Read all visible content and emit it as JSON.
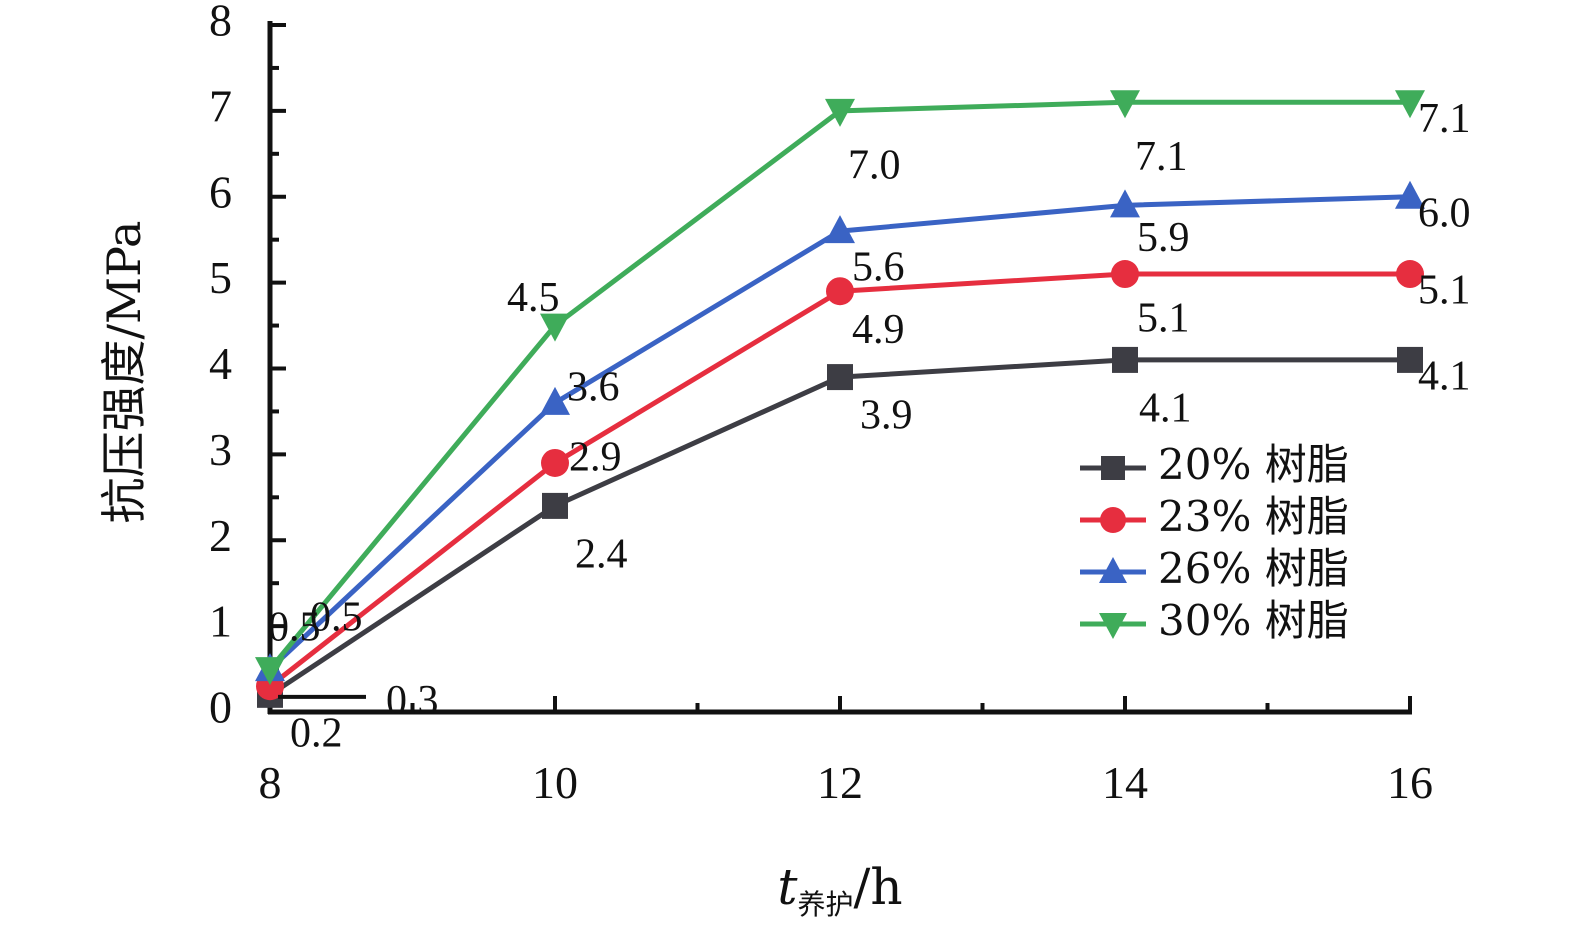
{
  "chart_data": {
    "type": "line",
    "x": [
      8,
      10,
      12,
      14,
      16
    ],
    "xlim": [
      8,
      16
    ],
    "ylim": [
      0,
      8
    ],
    "xticks": [
      "8",
      "10",
      "12",
      "14",
      "16"
    ],
    "yticks": [
      "0",
      "1",
      "2",
      "3",
      "4",
      "5",
      "6",
      "7",
      "8"
    ],
    "xlabel_main": "t",
    "xlabel_sub": "养护",
    "xlabel_unit": "/h",
    "ylabel": "抗压强度/MPa",
    "legend_position": "center-right",
    "grid": false,
    "series": [
      {
        "name": "20% 树脂",
        "values": [
          0.2,
          2.4,
          3.9,
          4.1,
          4.1
        ],
        "labels": [
          "0.2",
          "2.4",
          "3.9",
          "4.1",
          "4.1"
        ],
        "color": "#3d3d44",
        "marker": "square"
      },
      {
        "name": "23% 树脂",
        "values": [
          0.3,
          2.9,
          4.9,
          5.1,
          5.1
        ],
        "labels": [
          "0.3",
          "2.9",
          "4.9",
          "5.1",
          "5.1"
        ],
        "color": "#e62e3f",
        "marker": "circle"
      },
      {
        "name": "26% 树脂",
        "values": [
          0.5,
          3.6,
          5.6,
          5.9,
          6.0
        ],
        "labels": [
          "0.5",
          "3.6",
          "5.6",
          "5.9",
          "6.0"
        ],
        "color": "#3a63c4",
        "marker": "triangle-up"
      },
      {
        "name": "30% 树脂",
        "values": [
          0.5,
          4.5,
          7.0,
          7.1,
          7.1
        ],
        "labels": [
          "0.5",
          "4.5",
          "7.0",
          "7.1",
          "7.1"
        ],
        "color": "#3fac5a",
        "marker": "triangle-down"
      }
    ]
  }
}
